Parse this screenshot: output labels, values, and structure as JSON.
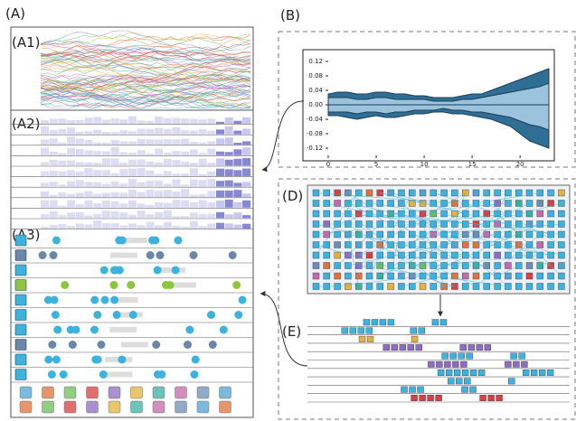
{
  "panels": {
    "A": "(A)",
    "A1": "(A1)",
    "A2": "(A2)",
    "A3": "(A3)",
    "B": "(B)",
    "D": "(D)",
    "E": "(E)"
  },
  "chart_data": {
    "type": "area",
    "x": [
      0,
      1,
      2,
      3,
      4,
      5,
      6,
      7,
      8,
      9,
      10,
      11,
      12,
      13,
      14,
      15,
      16,
      17,
      18,
      19,
      20,
      21,
      22,
      23
    ],
    "series": [
      {
        "color": "#2f6f95",
        "values": [
          0.03,
          0.035,
          0.035,
          0.03,
          0.03,
          0.035,
          0.035,
          0.03,
          0.03,
          0.025,
          0.025,
          0.02,
          0.02,
          0.02,
          0.025,
          0.03,
          0.03,
          0.04,
          0.05,
          0.06,
          0.07,
          0.08,
          0.09,
          0.1
        ]
      },
      {
        "color": "#9cc3de",
        "values": [
          0.02,
          0.02,
          0.02,
          0.015,
          0.015,
          0.02,
          0.02,
          0.015,
          0.015,
          0.015,
          0.015,
          0.01,
          0.01,
          0.01,
          0.015,
          0.015,
          0.02,
          0.025,
          0.03,
          0.035,
          0.04,
          0.045,
          0.05,
          0.06
        ]
      },
      {
        "color": "#9cc3de",
        "values": [
          -0.02,
          -0.02,
          -0.02,
          -0.025,
          -0.02,
          -0.02,
          -0.025,
          -0.02,
          -0.02,
          -0.015,
          -0.015,
          -0.015,
          -0.01,
          -0.015,
          -0.015,
          -0.02,
          -0.02,
          -0.025,
          -0.03,
          -0.035,
          -0.045,
          -0.055,
          -0.06,
          -0.07
        ]
      },
      {
        "color": "#2f6f95",
        "values": [
          -0.03,
          -0.03,
          -0.035,
          -0.04,
          -0.035,
          -0.03,
          -0.035,
          -0.035,
          -0.03,
          -0.025,
          -0.025,
          -0.02,
          -0.02,
          -0.025,
          -0.025,
          -0.03,
          -0.035,
          -0.04,
          -0.05,
          -0.06,
          -0.08,
          -0.1,
          -0.11,
          -0.12
        ]
      }
    ],
    "xlim": [
      0,
      23
    ],
    "ylim": [
      -0.14,
      0.14
    ],
    "xticks": [
      0,
      5,
      10,
      15,
      20
    ],
    "yticks": [
      0.12,
      0.08,
      0.04,
      {
        "value": 0,
        "label": "0.00"
      },
      -0.04,
      -0.08,
      -0.12
    ]
  }
}
